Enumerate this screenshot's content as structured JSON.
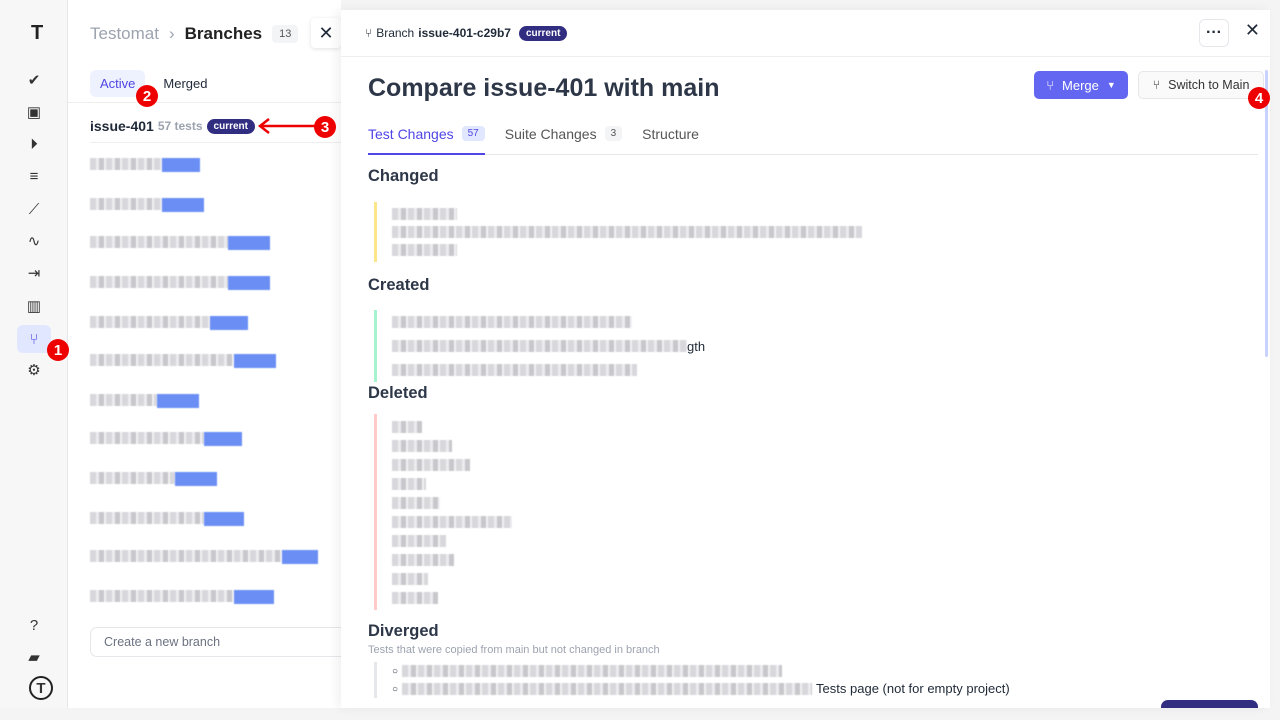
{
  "sidebar": {
    "items": [
      "checks",
      "runs-case",
      "play",
      "test-list",
      "steps",
      "pulse",
      "import",
      "analytics",
      "branches",
      "settings",
      "help",
      "projects",
      "profile"
    ],
    "active": "branches"
  },
  "branches": {
    "breadcrumb_root": "Testomat",
    "title": "Branches",
    "count": "13",
    "tabs": [
      {
        "label": "Active"
      },
      {
        "label": "Merged"
      }
    ],
    "current": {
      "name": "issue-401",
      "tests": "57 tests",
      "badge": "current"
    },
    "new_branch_placeholder": "Create a new branch"
  },
  "panel": {
    "branch_label": "Branch",
    "branch_name": "issue-401-c29b7",
    "branch_badge": "current",
    "title": "Compare issue-401 with main",
    "merge_label": "Merge",
    "switch_label": "Switch to Main",
    "tabs": [
      {
        "label": "Test Changes",
        "count": "57"
      },
      {
        "label": "Suite Changes",
        "count": "3"
      },
      {
        "label": "Structure"
      }
    ],
    "sections": {
      "changed": "Changed",
      "created": "Created",
      "created_fragment": "gth",
      "deleted": "Deleted",
      "diverged": "Diverged",
      "diverged_sub": "Tests that were copied from main but not changed in branch",
      "diverged_fragment": "Tests page (not for empty project)"
    }
  },
  "annotations": [
    "1",
    "2",
    "3",
    "4"
  ],
  "colors": {
    "accent": "#6366f1",
    "badge": "#312e81",
    "changed": "#fde68a",
    "created": "#a7f3d0",
    "deleted": "#fecaca",
    "annotation": "#ee0000"
  }
}
